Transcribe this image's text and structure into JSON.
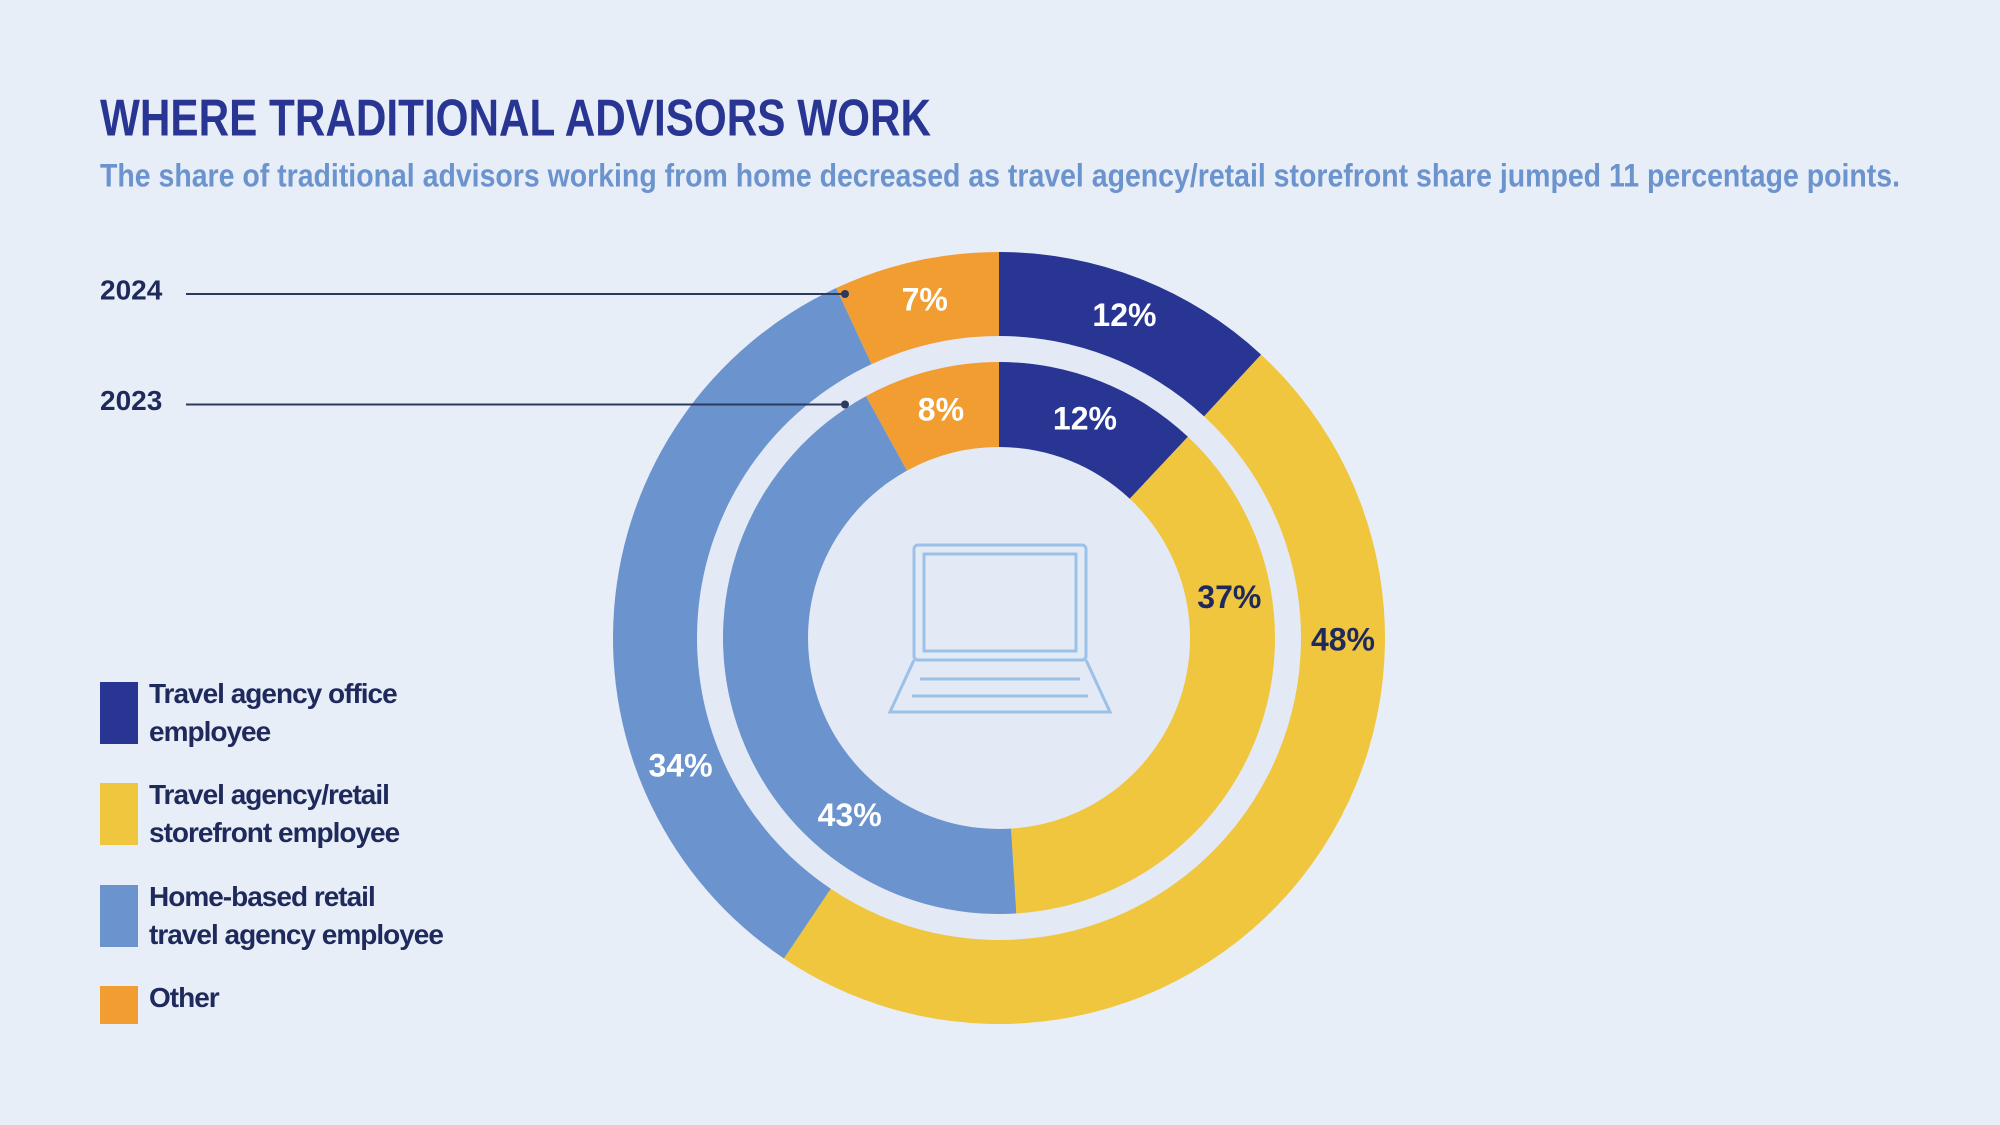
{
  "chart_data": {
    "type": "donut",
    "title": "WHERE TRADITIONAL ADVISORS WORK",
    "subtitle": "The share of traditional advisors working from home decreased as travel agency/retail storefront share jumped 11 percentage points.",
    "categories": [
      "Travel agency office employee",
      "Travel agency/retail storefront employee",
      "Home-based retail travel agency employee",
      "Other"
    ],
    "colors": [
      "#283593",
      "#f0c63f",
      "#6b93ce",
      "#f29d32"
    ],
    "series": [
      {
        "name": "2024",
        "values": [
          12,
          48,
          34,
          7
        ],
        "value_labels": [
          "12%",
          "48%",
          "34%",
          "7%"
        ]
      },
      {
        "name": "2023",
        "values": [
          12,
          37,
          43,
          8
        ],
        "value_labels": [
          "12%",
          "37%",
          "43%",
          "8%"
        ]
      }
    ]
  }
}
